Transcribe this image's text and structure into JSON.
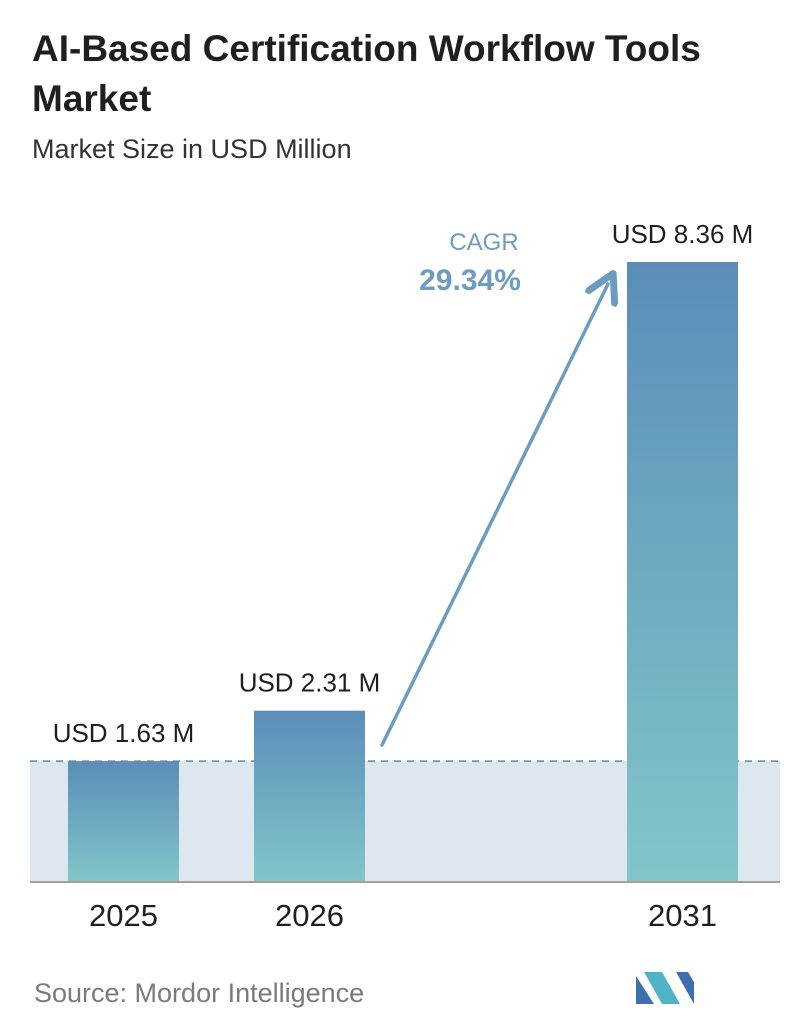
{
  "header": {
    "title": "AI-Based Certification Workflow Tools Market",
    "subtitle": "Market Size in USD Million"
  },
  "chart_data": {
    "type": "bar",
    "categories": [
      "2025",
      "2026",
      "2031"
    ],
    "values": [
      1.63,
      2.31,
      8.36
    ],
    "value_labels": [
      "USD 1.63 M",
      "USD 2.31 M",
      "USD 8.36 M"
    ],
    "ylim": [
      0,
      8.36
    ],
    "grid": false,
    "annotation": {
      "label": "CAGR",
      "value": "29.34%",
      "from": "2026",
      "to": "2031"
    },
    "colors": {
      "bar_top": "#5b8db8",
      "bar_bottom": "#82c6c9",
      "band": "#dde7f0",
      "accent": "#6d9cc2",
      "baseline": "#a0a0a0"
    }
  },
  "footer": {
    "source": "Source: Mordor Intelligence",
    "logo_icon": "mordor-logo-icon"
  }
}
